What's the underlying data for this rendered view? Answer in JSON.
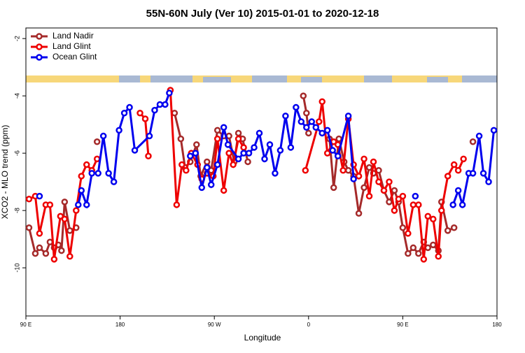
{
  "chart_data": {
    "type": "line",
    "title": "55N-60N July (Ver 10)   2015-01-01 to 2020-12-18",
    "x_label": "Longitude",
    "y_label": "XCO2 - MLO trend (ppm)",
    "xlim": [
      90,
      540
    ],
    "xticks": [
      {
        "value": 90,
        "label": "90 E"
      },
      180,
      {
        "value": 270,
        "label": "90 W"
      },
      {
        "value": 360,
        "label": "0"
      },
      {
        "value": 450,
        "label": "90 E"
      },
      {
        "value": 540,
        "label": "180"
      }
    ],
    "ylim": [
      -11.68,
      -1.63
    ],
    "yticks": [
      -2,
      -4,
      -6,
      -8,
      -10
    ],
    "legend": "top-left",
    "series": [
      {
        "name": "Land Nadir",
        "color": "#a52a2a",
        "x": [
          93,
          99,
          103,
          109,
          113,
          117,
          121,
          124,
          127,
          132,
          138,
          148,
          158,
          200,
          232,
          238,
          242,
          247,
          253,
          257,
          263,
          267,
          273,
          279,
          284,
          289,
          293,
          297,
          302,
          330,
          355,
          358,
          360,
          370,
          380,
          384,
          389,
          394,
          398,
          403,
          408,
          413,
          418,
          422,
          427,
          432,
          437,
          442,
          446,
          450,
          455,
          460,
          465,
          470,
          474,
          479,
          484,
          487,
          493,
          499,
          508,
          517
        ],
        "values": [
          -8.6,
          -9.5,
          -9.3,
          -9.5,
          -9.1,
          -9.3,
          -9.2,
          -9.4,
          -7.7,
          -8.7,
          -8.6,
          null,
          -5.6,
          null,
          -4.6,
          -5.5,
          -6.5,
          -6.3,
          -5.7,
          -6.8,
          -6.3,
          -6.6,
          -5.2,
          -5.4,
          -5.4,
          -6.3,
          -5.3,
          -5.5,
          -6.3,
          null,
          -4.0,
          -4.6,
          -5.3,
          null,
          -5.5,
          -7.2,
          -5.5,
          -6.3,
          -6.6,
          -6.8,
          -8.1,
          -7.2,
          -6.5,
          -6.7,
          -6.6,
          -7.3,
          -7.7,
          -7.3,
          -7.7,
          -8.6,
          -9.5,
          -9.3,
          -9.5,
          -9.1,
          -9.3,
          -9.2,
          -9.4,
          -7.7,
          -8.7,
          -8.6,
          null,
          -5.6
        ]
      },
      {
        "name": "Land Glint",
        "color": "#ee0000",
        "x": [
          93,
          99,
          103,
          109,
          113,
          117,
          123,
          127,
          132,
          138,
          143,
          148,
          153,
          158,
          180,
          199,
          204,
          207,
          218,
          228,
          234,
          239,
          243,
          248,
          254,
          258,
          263,
          269,
          273,
          279,
          284,
          288,
          293,
          298,
          330,
          357,
          370,
          373,
          378,
          384,
          388,
          393,
          398,
          403,
          408,
          413,
          418,
          422,
          427,
          432,
          437,
          442,
          446,
          450,
          455,
          460,
          465,
          470,
          474,
          479,
          484,
          487,
          493,
          499,
          503,
          508
        ],
        "values": [
          -7.6,
          -7.5,
          -8.8,
          -7.8,
          -7.8,
          -9.7,
          -8.2,
          -8.3,
          -9.6,
          -8.0,
          -6.8,
          -6.4,
          -6.6,
          -6.2,
          null,
          -4.6,
          -4.8,
          -6.1,
          null,
          -3.8,
          -7.8,
          -6.4,
          -6.6,
          -6.0,
          -6.4,
          -6.9,
          -6.7,
          -6.8,
          -5.5,
          -7.3,
          -6.0,
          -6.4,
          -5.5,
          -5.8,
          null,
          -6.6,
          -4.9,
          -4.2,
          -6.0,
          -5.6,
          -5.7,
          -6.6,
          -4.8,
          -6.4,
          -6.8,
          -6.2,
          -7.5,
          -6.3,
          -7.0,
          -7.3,
          -7.0,
          -8.0,
          -7.6,
          -7.5,
          -8.8,
          -7.8,
          -7.8,
          -9.7,
          -8.2,
          -8.3,
          -9.6,
          -8.0,
          -6.8,
          -6.4,
          -6.6,
          -6.2
        ]
      },
      {
        "name": "Ocean Glint",
        "color": "#0000ee",
        "x": [
          103,
          120,
          140,
          143,
          148,
          153,
          159,
          164,
          169,
          174,
          179,
          184,
          189,
          194,
          208,
          213,
          218,
          223,
          227,
          237,
          247,
          252,
          258,
          263,
          267,
          273,
          279,
          283,
          293,
          298,
          303,
          308,
          313,
          318,
          323,
          328,
          333,
          338,
          343,
          348,
          353,
          358,
          363,
          367,
          373,
          378,
          383,
          388,
          398,
          403,
          430,
          462,
          480,
          498,
          503,
          507,
          513,
          517,
          523,
          527,
          532,
          537
        ],
        "values": [
          -7.5,
          null,
          -7.8,
          -7.3,
          -7.8,
          -6.7,
          -6.7,
          -5.4,
          -6.7,
          -7.0,
          -5.2,
          -4.6,
          -4.4,
          -5.9,
          -5.4,
          -4.5,
          -4.3,
          -4.3,
          -3.9,
          null,
          -6.1,
          -6.0,
          -7.2,
          -6.5,
          -7.1,
          -6.4,
          -5.1,
          -5.7,
          -6.2,
          -6.0,
          -6.0,
          -5.8,
          -5.3,
          -6.2,
          -5.7,
          -6.7,
          -5.9,
          -4.7,
          -5.8,
          -4.4,
          -4.9,
          -5.1,
          -4.9,
          -5.1,
          -5.3,
          -5.2,
          -5.9,
          -6.1,
          -4.7,
          -6.9,
          null,
          -7.5,
          null,
          -7.8,
          -7.3,
          -7.8,
          -6.7,
          -6.7,
          -5.4,
          -6.7,
          -7.0,
          -5.2
        ]
      }
    ]
  }
}
